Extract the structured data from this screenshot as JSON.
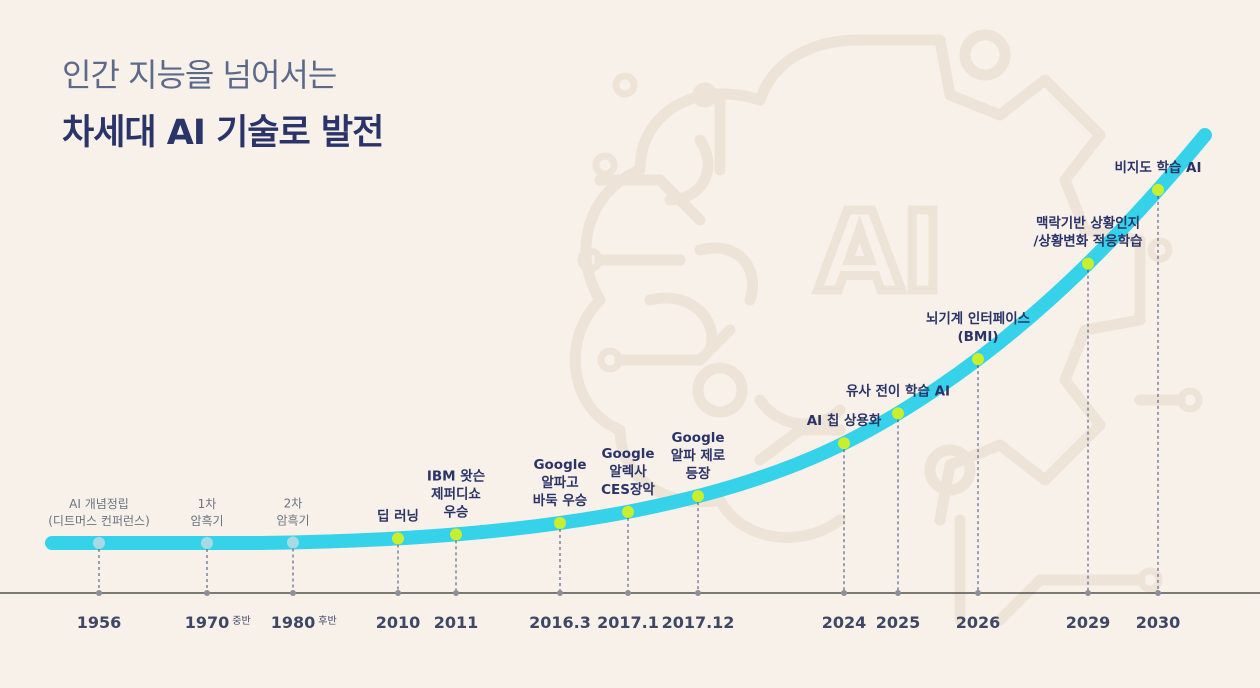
{
  "title": {
    "line1": "인간 지능을  넘어서는",
    "line2": "차세대 AI 기술로 발전"
  },
  "background_logo": {
    "text": "AI",
    "icon": "brain-circuit-gear-icon"
  },
  "colors": {
    "background": "#f8f1ea",
    "curve": "#35d2e9",
    "milestone_future": "#c8ee2e",
    "milestone_past": "#a6dbe3",
    "title_light": "#5c6a8a",
    "title_dark": "#2a3468",
    "label": "#2a3468",
    "label_muted": "#6b7380",
    "year": "#3e4864",
    "axis": "#333333",
    "dashed_line": "#3a4a7a",
    "watermark": "#eee3d7"
  },
  "milestones": [
    {
      "year": "1956",
      "suffix": "",
      "label": [
        "AI 개념정립",
        "(디트머스 컨퍼런스)"
      ],
      "style": "muted",
      "dot": "past"
    },
    {
      "year": "1970",
      "suffix": "중반",
      "label": [
        "1차",
        "암흑기"
      ],
      "style": "muted",
      "dot": "past"
    },
    {
      "year": "1980",
      "suffix": "후반",
      "label": [
        "2차",
        "암흑기"
      ],
      "style": "muted",
      "dot": "past"
    },
    {
      "year": "2010",
      "suffix": "",
      "label": [
        "딥 러닝"
      ],
      "style": "strong",
      "dot": "future"
    },
    {
      "year": "2011",
      "suffix": "",
      "label": [
        "IBM 왓슨",
        "제퍼디쇼",
        "우승"
      ],
      "style": "strong",
      "dot": "future"
    },
    {
      "year": "2016.3",
      "suffix": "",
      "label": [
        "Google",
        "알파고",
        "바둑 우승"
      ],
      "style": "strong",
      "dot": "future"
    },
    {
      "year": "2017.1",
      "suffix": "",
      "label": [
        "Google",
        "알렉사",
        "CES장악"
      ],
      "style": "strong",
      "dot": "future"
    },
    {
      "year": "2017.12",
      "suffix": "",
      "label": [
        "Google",
        "알파 제로",
        "등장"
      ],
      "style": "strong",
      "dot": "future"
    },
    {
      "year": "2024",
      "suffix": "",
      "label": [
        "AI 칩 상용화"
      ],
      "style": "strong",
      "dot": "future"
    },
    {
      "year": "2025",
      "suffix": "",
      "label": [
        "유사 전이 학습 AI"
      ],
      "style": "strong",
      "dot": "future"
    },
    {
      "year": "2026",
      "suffix": "",
      "label": [
        "뇌기계 인터페이스",
        "(BMI)"
      ],
      "style": "strong",
      "dot": "future"
    },
    {
      "year": "2029",
      "suffix": "",
      "label": [
        "맥락기반 상황인지",
        "/상황변화 적응학습"
      ],
      "style": "strong",
      "dot": "future"
    },
    {
      "year": "2030",
      "suffix": "",
      "label": [
        "비지도 학습 AI"
      ],
      "style": "strong",
      "dot": "future"
    }
  ]
}
